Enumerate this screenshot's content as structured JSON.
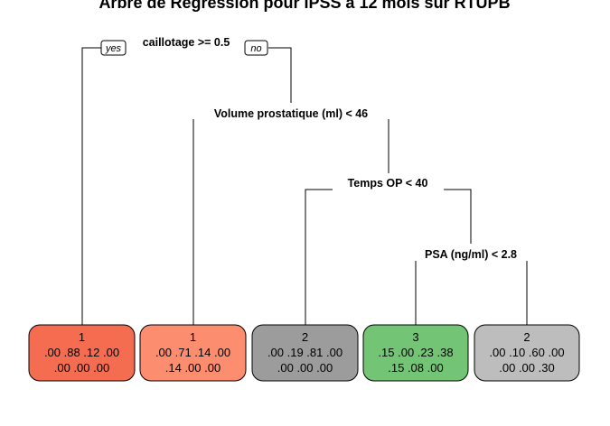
{
  "title": "Arbre de Régression pour IPSS à 12 mois sur RTUPB",
  "branch_labels": {
    "yes": "yes",
    "no": "no"
  },
  "splits": [
    {
      "label": "caillotage >= 0.5"
    },
    {
      "label": "Volume prostatique (ml) < 46"
    },
    {
      "label": "Temps OP < 40"
    },
    {
      "label": "PSA (ng/ml) < 2.8"
    }
  ],
  "leaves": [
    {
      "class": "1",
      "line1": ".00 .88 .12 .00",
      "line2": ".00 .00 .00",
      "color": "#f46d50"
    },
    {
      "class": "1",
      "line1": ".00 .71 .14 .00",
      "line2": ".14 .00 .00",
      "color": "#fc8d6f"
    },
    {
      "class": "2",
      "line1": ".00 .19 .81 .00",
      "line2": ".00 .00 .00",
      "color": "#9c9c9c"
    },
    {
      "class": "3",
      "line1": ".15 .00 .23 .38",
      "line2": ".15 .08 .00",
      "color": "#74c476"
    },
    {
      "class": "2",
      "line1": ".00 .10 .60 .00",
      "line2": ".00 .00 .30",
      "color": "#bdbdbd"
    }
  ]
}
